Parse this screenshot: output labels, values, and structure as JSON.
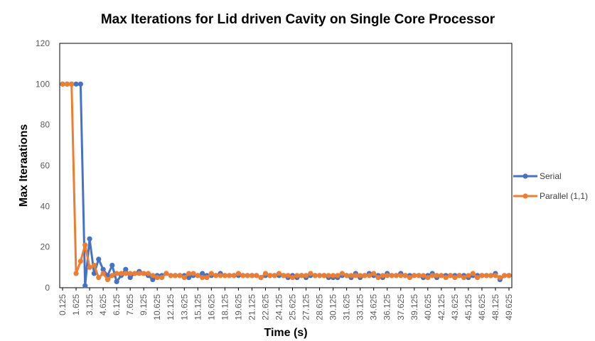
{
  "chart_data": {
    "type": "line",
    "title": "Max Iterations for Lid driven Cavity on Single Core Processor",
    "xlabel": "Time (s)",
    "ylabel": "Max Iteraations",
    "ylim": [
      0,
      120
    ],
    "yticks": [
      0,
      20,
      40,
      60,
      80,
      100,
      120
    ],
    "x_tick_labels": [
      "0.125",
      "1.625",
      "3.125",
      "4.625",
      "6.125",
      "7.625",
      "9.125",
      "10.625",
      "12.125",
      "13.625",
      "15.125",
      "16.625",
      "18.125",
      "19.625",
      "21.125",
      "22.625",
      "24.125",
      "25.625",
      "27.125",
      "28.625",
      "30.125",
      "31.625",
      "33.125",
      "34.625",
      "36.125",
      "37.625",
      "39.125",
      "40.625",
      "42.125",
      "43.625",
      "45.125",
      "46.625",
      "48.125",
      "49.625"
    ],
    "x": [
      0.125,
      0.625,
      1.125,
      1.625,
      2.125,
      2.625,
      3.125,
      3.625,
      4.125,
      4.625,
      5.125,
      5.625,
      6.125,
      6.625,
      7.125,
      7.625,
      8.125,
      8.625,
      9.125,
      9.625,
      10.125,
      10.625,
      11.125,
      11.625,
      12.125,
      12.625,
      13.125,
      13.625,
      14.125,
      14.625,
      15.125,
      15.625,
      16.125,
      16.625,
      17.125,
      17.625,
      18.125,
      18.625,
      19.125,
      19.625,
      20.125,
      20.625,
      21.125,
      21.625,
      22.125,
      22.625,
      23.125,
      23.625,
      24.125,
      24.625,
      25.125,
      25.625,
      26.125,
      26.625,
      27.125,
      27.625,
      28.125,
      28.625,
      29.125,
      29.625,
      30.125,
      30.625,
      31.125,
      31.625,
      32.125,
      32.625,
      33.125,
      33.625,
      34.125,
      34.625,
      35.125,
      35.625,
      36.125,
      36.625,
      37.125,
      37.625,
      38.125,
      38.625,
      39.125,
      39.625,
      40.125,
      40.625,
      41.125,
      41.625,
      42.125,
      42.625,
      43.125,
      43.625,
      44.125,
      44.625,
      45.125,
      45.625,
      46.125,
      46.625,
      47.125,
      47.625,
      48.125,
      48.625,
      49.125,
      49.625
    ],
    "series": [
      {
        "name": "Serial",
        "color": "#4472C4",
        "values": [
          100,
          100,
          100,
          100,
          100,
          1,
          24,
          7,
          14,
          9,
          6,
          11,
          3,
          6,
          9,
          5,
          7,
          8,
          7,
          6,
          4,
          6,
          6,
          7,
          6,
          6,
          6,
          6,
          5,
          6,
          6,
          7,
          6,
          6,
          6,
          7,
          6,
          6,
          6,
          6,
          6,
          6,
          6,
          6,
          5,
          6,
          6,
          6,
          6,
          6,
          5,
          6,
          5,
          6,
          5,
          6,
          6,
          6,
          6,
          5,
          5,
          5,
          6,
          6,
          5,
          7,
          5,
          6,
          7,
          6,
          6,
          5,
          7,
          6,
          6,
          7,
          6,
          6,
          6,
          6,
          5,
          6,
          7,
          5,
          6,
          6,
          6,
          6,
          6,
          6,
          5,
          6,
          6,
          6,
          6,
          6,
          7,
          4,
          6,
          6
        ]
      },
      {
        "name": "Parallel (1,1)",
        "color": "#ED7D31",
        "values": [
          100,
          100,
          100,
          7,
          13,
          21,
          10,
          11,
          5,
          7,
          4,
          6,
          7,
          7,
          7,
          7,
          7,
          7,
          7,
          7,
          6,
          5,
          5,
          7,
          6,
          6,
          6,
          5,
          7,
          7,
          6,
          5,
          5,
          7,
          6,
          6,
          6,
          6,
          6,
          7,
          6,
          6,
          6,
          6,
          5,
          7,
          6,
          6,
          7,
          6,
          6,
          5,
          6,
          6,
          6,
          7,
          6,
          6,
          6,
          6,
          6,
          6,
          7,
          6,
          6,
          6,
          6,
          6,
          6,
          7,
          5,
          6,
          6,
          6,
          6,
          6,
          6,
          5,
          6,
          6,
          6,
          5,
          6,
          6,
          6,
          5,
          6,
          5,
          6,
          5,
          6,
          7,
          5,
          6,
          6,
          6,
          6,
          5,
          6,
          6
        ]
      }
    ],
    "legend_position": "right",
    "grid": false
  }
}
